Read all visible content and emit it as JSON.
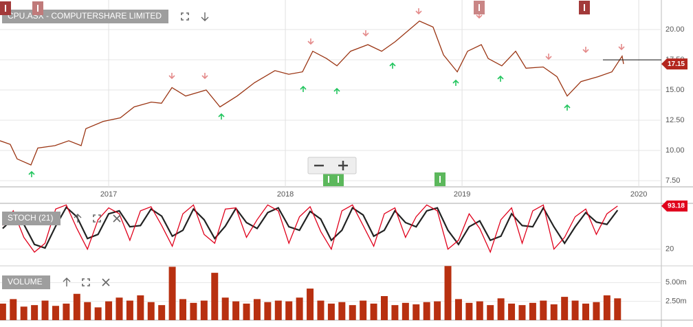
{
  "chart_data": [
    {
      "type": "line",
      "title": "CPU.ASX - COMPUTERSHARE LIMITED",
      "x": [
        2016.385,
        2016.443,
        2016.482,
        2016.56,
        2016.599,
        2016.696,
        2016.774,
        2016.844,
        2016.871,
        2016.969,
        2017.066,
        2017.144,
        2017.241,
        2017.299,
        2017.358,
        2017.436,
        2017.552,
        2017.63,
        2017.727,
        2017.825,
        2017.941,
        2018.019,
        2018.097,
        2018.155,
        2018.233,
        2018.292,
        2018.369,
        2018.467,
        2018.545,
        2018.622,
        2018.759,
        2018.836,
        2018.895,
        2018.973,
        2019.031,
        2019.109,
        2019.148,
        2019.225,
        2019.303,
        2019.362,
        2019.459,
        2019.537,
        2019.595,
        2019.673,
        2019.77,
        2019.848,
        2019.906,
        2019.914
      ],
      "series": [
        {
          "color": "#9a3412",
          "values": [
            10.8,
            10.5,
            9.3,
            8.8,
            10.2,
            10.4,
            10.8,
            10.4,
            11.8,
            12.4,
            12.7,
            13.6,
            14.0,
            13.9,
            15.2,
            14.5,
            15.0,
            13.6,
            14.5,
            15.6,
            16.6,
            16.3,
            16.5,
            18.2,
            17.6,
            17.0,
            18.2,
            18.75,
            18.2,
            19.0,
            20.7,
            20.2,
            17.9,
            16.5,
            18.2,
            18.75,
            17.6,
            17.0,
            18.2,
            16.8,
            16.9,
            16.1,
            14.5,
            15.7,
            16.1,
            16.5,
            17.8,
            17.15
          ]
        }
      ],
      "last_value": 17.15,
      "xlim": [
        2016.385,
        2020.128
      ],
      "xticks": [
        2017,
        2018,
        2019,
        2020
      ],
      "ylim": [
        6.99,
        22.44
      ],
      "yticks": [
        {
          "value": 7.5,
          "label": "7.50"
        },
        {
          "value": 10,
          "label": "10.00"
        },
        {
          "value": 12.5,
          "label": "12.50"
        },
        {
          "value": 15,
          "label": "15.00"
        },
        {
          "value": 17.5,
          "label": "17.50"
        },
        {
          "value": 20,
          "label": "20.00"
        }
      ],
      "grid": true
    },
    {
      "type": "line",
      "title": "STOCH (21)",
      "x": [
        2016.4,
        2016.46,
        2016.52,
        2016.58,
        2016.64,
        2016.7,
        2016.76,
        2016.82,
        2016.88,
        2016.94,
        2017.0,
        2017.06,
        2017.12,
        2017.18,
        2017.24,
        2017.3,
        2017.36,
        2017.42,
        2017.48,
        2017.54,
        2017.6,
        2017.66,
        2017.72,
        2017.78,
        2017.84,
        2017.9,
        2017.96,
        2018.02,
        2018.08,
        2018.14,
        2018.2,
        2018.26,
        2018.32,
        2018.38,
        2018.44,
        2018.5,
        2018.56,
        2018.62,
        2018.68,
        2018.74,
        2018.8,
        2018.86,
        2018.92,
        2018.98,
        2019.04,
        2019.1,
        2019.16,
        2019.22,
        2019.28,
        2019.34,
        2019.4,
        2019.46,
        2019.52,
        2019.58,
        2019.64,
        2019.7,
        2019.76,
        2019.82,
        2019.88
      ],
      "series": [
        {
          "color": "#222222",
          "values": [
            55,
            72,
            62,
            28,
            22,
            59,
            91,
            75,
            38,
            45,
            80,
            85,
            58,
            60,
            88,
            76,
            42,
            52,
            88,
            70,
            38,
            59,
            89,
            65,
            55,
            82,
            90,
            58,
            52,
            84,
            71,
            35,
            52,
            90,
            78,
            42,
            52,
            85,
            65,
            58,
            85,
            90,
            52,
            28,
            58,
            68,
            35,
            42,
            80,
            60,
            58,
            90,
            58,
            30,
            58,
            82,
            66,
            62,
            86
          ]
        },
        {
          "color": "#e0001b",
          "values": [
            60,
            85,
            40,
            15,
            30,
            88,
            95,
            55,
            20,
            70,
            90,
            80,
            35,
            85,
            92,
            60,
            25,
            80,
            95,
            45,
            30,
            88,
            90,
            40,
            70,
            95,
            85,
            30,
            75,
            92,
            50,
            20,
            85,
            95,
            60,
            25,
            80,
            90,
            40,
            75,
            95,
            85,
            20,
            35,
            80,
            55,
            15,
            70,
            90,
            30,
            85,
            95,
            20,
            40,
            75,
            88,
            45,
            80,
            93.18
          ]
        }
      ],
      "last_value": 93.18,
      "xlim": [
        2016.385,
        2020.128
      ],
      "ylim": [
        -6,
        100
      ],
      "yticks": [
        20
      ],
      "grid": true
    },
    {
      "type": "bar",
      "title": "VOLUME",
      "color": "#b83010",
      "x": [
        2016.4,
        2016.46,
        2016.52,
        2016.58,
        2016.64,
        2016.7,
        2016.76,
        2016.82,
        2016.88,
        2016.94,
        2017.0,
        2017.06,
        2017.12,
        2017.18,
        2017.24,
        2017.3,
        2017.36,
        2017.42,
        2017.48,
        2017.54,
        2017.6,
        2017.66,
        2017.72,
        2017.78,
        2017.84,
        2017.9,
        2017.96,
        2018.02,
        2018.08,
        2018.14,
        2018.2,
        2018.26,
        2018.32,
        2018.38,
        2018.44,
        2018.5,
        2018.56,
        2018.62,
        2018.68,
        2018.74,
        2018.8,
        2018.86,
        2018.92,
        2018.98,
        2019.04,
        2019.1,
        2019.16,
        2019.22,
        2019.28,
        2019.34,
        2019.4,
        2019.46,
        2019.52,
        2019.58,
        2019.64,
        2019.7,
        2019.76,
        2019.82,
        2019.88
      ],
      "values": [
        2200000,
        2800000,
        1800000,
        2000000,
        2600000,
        1900000,
        2200000,
        3500000,
        2400000,
        1700000,
        2500000,
        3000000,
        2600000,
        3300000,
        2400000,
        2000000,
        7100000,
        2800000,
        2300000,
        2600000,
        6300000,
        3000000,
        2500000,
        2200000,
        2800000,
        2400000,
        2600000,
        2500000,
        3000000,
        4200000,
        2600000,
        2200000,
        2400000,
        2000000,
        2600000,
        2200000,
        3200000,
        2000000,
        2300000,
        2100000,
        2400000,
        2500000,
        7200000,
        2800000,
        2300000,
        2500000,
        2000000,
        2900000,
        2200000,
        2000000,
        2300000,
        2600000,
        2100000,
        3100000,
        2600000,
        2200000,
        2400000,
        3300000,
        2900000
      ],
      "xlim": [
        2016.385,
        2020.128
      ],
      "ylim": [
        0,
        6950000
      ],
      "yticks": [
        {
          "value": 2500000,
          "label": "2.50m"
        },
        {
          "value": 5000000,
          "label": "5.00m"
        }
      ],
      "grid": true
    }
  ]
}
